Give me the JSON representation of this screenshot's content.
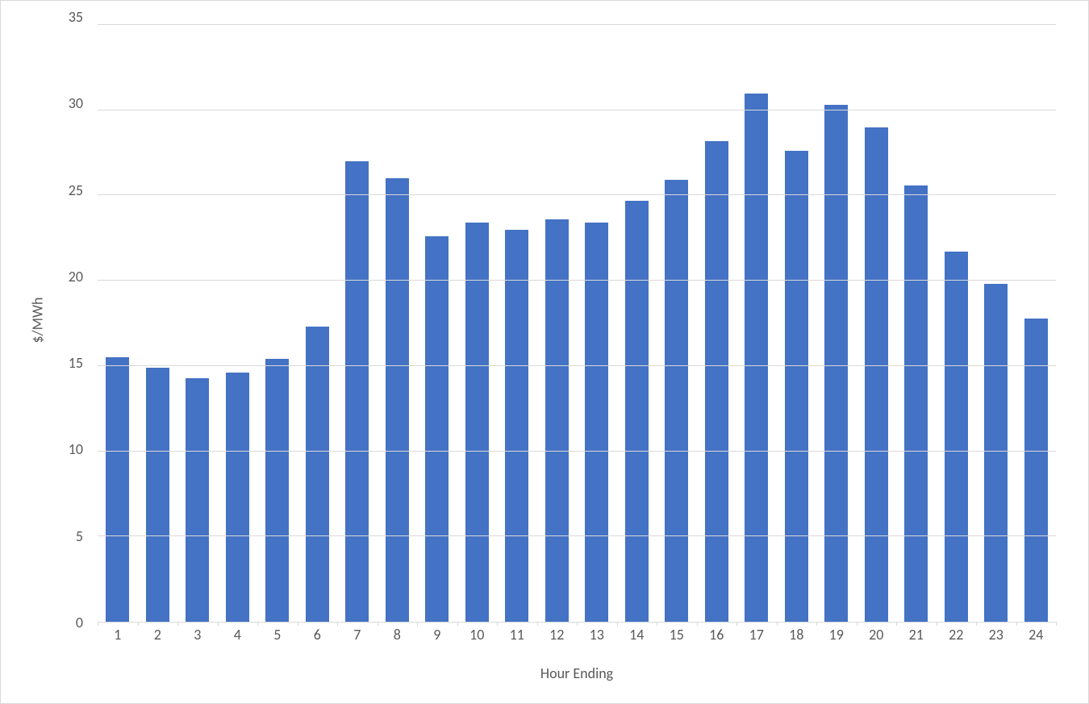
{
  "chart": {
    "type": "bar",
    "ylabel": "$/MWh",
    "xlabel": "Hour Ending",
    "label_fontsize": 18,
    "tick_fontsize": 18,
    "text_color": "#595959",
    "ylim": [
      0,
      35
    ],
    "ytick_step": 5,
    "yticks": [
      0,
      5,
      10,
      15,
      20,
      25,
      30,
      35
    ],
    "categories": [
      "1",
      "2",
      "3",
      "4",
      "5",
      "6",
      "7",
      "8",
      "9",
      "10",
      "11",
      "12",
      "13",
      "14",
      "15",
      "16",
      "17",
      "18",
      "19",
      "20",
      "21",
      "22",
      "23",
      "24"
    ],
    "values": [
      15.5,
      14.9,
      14.3,
      14.6,
      15.4,
      17.3,
      27.0,
      26.0,
      22.6,
      23.4,
      23.0,
      23.6,
      23.4,
      24.7,
      25.9,
      28.2,
      31.0,
      27.6,
      30.3,
      29.0,
      25.6,
      21.7,
      19.8,
      17.8
    ],
    "bar_color": "#4472c4",
    "bar_width": 0.58,
    "background_color": "#ffffff",
    "grid_color": "#d9d9d9",
    "border_color": "#d9d9d9",
    "font_family": "Calibri"
  }
}
